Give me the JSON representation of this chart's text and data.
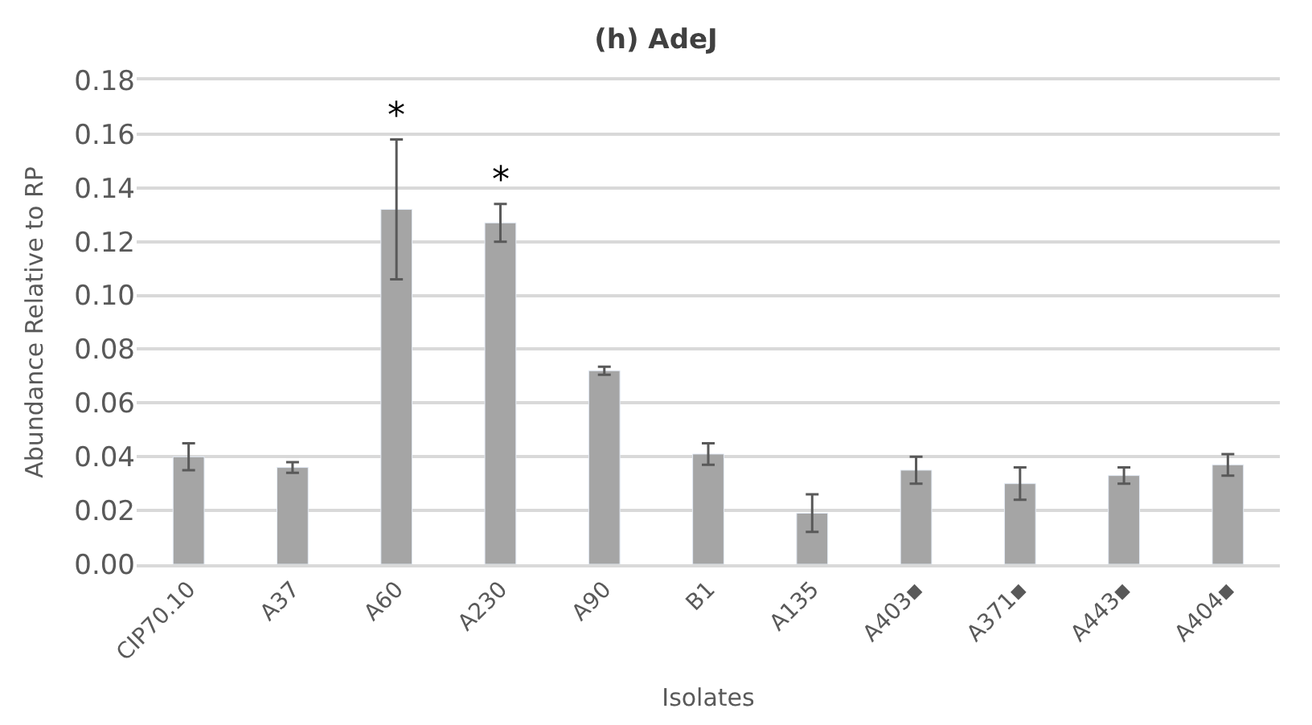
{
  "chart_data": {
    "type": "bar",
    "title": "(h) AdeJ",
    "xlabel": "Isolates",
    "ylabel": "Abundance Relative to RP",
    "categories": [
      "CIP70.10",
      "A37",
      "A60",
      "A230",
      "A90",
      "B1",
      "A135",
      "A403▪",
      "A371▪",
      "A443▪",
      "A404▪"
    ],
    "values": [
      0.04,
      0.036,
      0.132,
      0.127,
      0.072,
      0.041,
      0.019,
      0.035,
      0.03,
      0.033,
      0.037
    ],
    "errors": [
      0.005,
      0.002,
      0.026,
      0.007,
      0.0015,
      0.004,
      0.007,
      0.005,
      0.006,
      0.003,
      0.004
    ],
    "color": "#a5a5a5",
    "ylim": [
      0,
      0.18
    ],
    "yticks": [
      {
        "value": 0,
        "label": "0.00"
      },
      0.02,
      0.04,
      0.06,
      0.08,
      {
        "value": 0.1,
        "label": "0.10"
      },
      0.12,
      0.14,
      0.16,
      0.18
    ],
    "annotations": [
      "*",
      "*"
    ],
    "grid": "y"
  }
}
